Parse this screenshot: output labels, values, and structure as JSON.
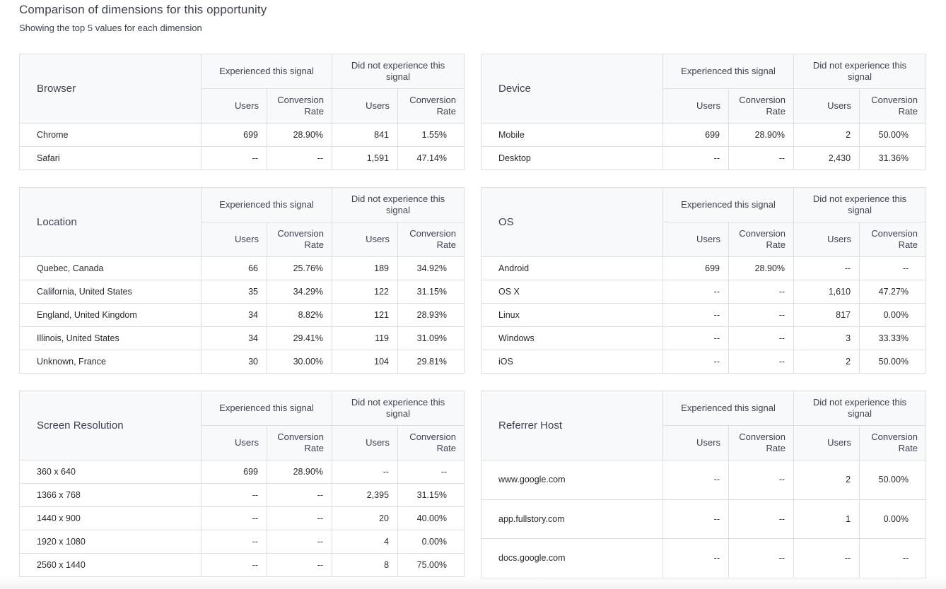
{
  "header": {
    "title": "Comparison of dimensions for this opportunity",
    "subtitle": "Showing the top 5 values for each dimension"
  },
  "column_labels": {
    "experienced": "Experienced this signal",
    "not_experienced": "Did not experience this signal",
    "users": "Users",
    "conversion_rate": "Conversion Rate"
  },
  "panels": [
    {
      "title": "Browser",
      "rows": [
        [
          "Chrome",
          "699",
          "28.90%",
          "841",
          "1.55%"
        ],
        [
          "Safari",
          "--",
          "--",
          "1,591",
          "47.14%"
        ]
      ]
    },
    {
      "title": "Device",
      "rows": [
        [
          "Mobile",
          "699",
          "28.90%",
          "2",
          "50.00%"
        ],
        [
          "Desktop",
          "--",
          "--",
          "2,430",
          "31.36%"
        ]
      ]
    },
    {
      "title": "Location",
      "rows": [
        [
          "Quebec, Canada",
          "66",
          "25.76%",
          "189",
          "34.92%"
        ],
        [
          "California, United States",
          "35",
          "34.29%",
          "122",
          "31.15%"
        ],
        [
          "England, United Kingdom",
          "34",
          "8.82%",
          "121",
          "28.93%"
        ],
        [
          "Illinois, United States",
          "34",
          "29.41%",
          "119",
          "31.09%"
        ],
        [
          "Unknown, France",
          "30",
          "30.00%",
          "104",
          "29.81%"
        ]
      ]
    },
    {
      "title": "OS",
      "rows": [
        [
          "Android",
          "699",
          "28.90%",
          "--",
          "--"
        ],
        [
          "OS X",
          "--",
          "--",
          "1,610",
          "47.27%"
        ],
        [
          "Linux",
          "--",
          "--",
          "817",
          "0.00%"
        ],
        [
          "Windows",
          "--",
          "--",
          "3",
          "33.33%"
        ],
        [
          "iOS",
          "--",
          "--",
          "2",
          "50.00%"
        ]
      ]
    },
    {
      "title": "Screen Resolution",
      "rows": [
        [
          "360 x 640",
          "699",
          "28.90%",
          "--",
          "--"
        ],
        [
          "1366 x 768",
          "--",
          "--",
          "2,395",
          "31.15%"
        ],
        [
          "1440 x 900",
          "--",
          "--",
          "20",
          "40.00%"
        ],
        [
          "1920 x 1080",
          "--",
          "--",
          "4",
          "0.00%"
        ],
        [
          "2560 x 1440",
          "--",
          "--",
          "8",
          "75.00%"
        ]
      ]
    },
    {
      "title": "Referrer Host",
      "rows": [
        [
          "www.google.com",
          "--",
          "--",
          "2",
          "50.00%"
        ],
        [
          "app.fullstory.com",
          "--",
          "--",
          "1",
          "0.00%"
        ],
        [
          "docs.google.com",
          "--",
          "--",
          "--",
          "--"
        ]
      ]
    }
  ]
}
